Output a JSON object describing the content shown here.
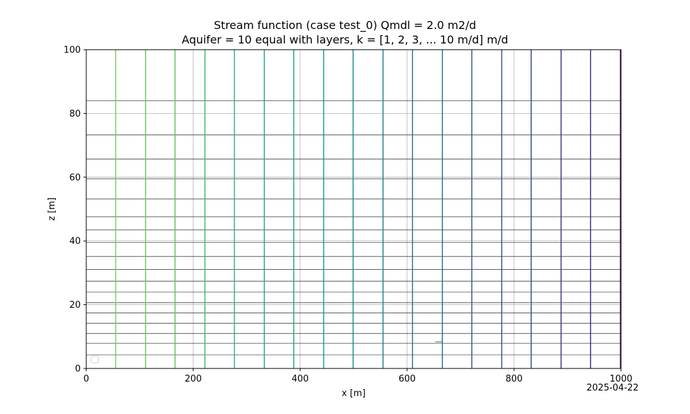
{
  "figure": {
    "title_line1": "Stream function (case test_0) Qmdl = 2.0 m2/d",
    "title_line2": "Aquifer = 10 equal with layers, k = [1, 2, 3, ... 10 m/d] m/d",
    "date_stamp": "2025-04-22"
  },
  "chart_data": {
    "type": "line",
    "title": "Stream function (case test_0) Qmdl = 2.0 m2/d\nAquifer = 10 equal with layers, k = [1, 2, 3, ... 10 m/d] m/d",
    "xlabel": "x [m]",
    "ylabel": "z [m]",
    "xlim": [
      0,
      1000
    ],
    "ylim": [
      0,
      100
    ],
    "xticks": [
      0,
      200,
      400,
      600,
      800,
      1000
    ],
    "yticks": [
      0,
      20,
      40,
      60,
      80,
      100
    ],
    "grid": true,
    "legend": "lower-left (empty)",
    "vertical_lines_x": [
      55,
      111,
      166,
      222,
      277,
      333,
      388,
      444,
      499,
      555,
      610,
      666,
      721,
      777,
      832,
      888,
      943,
      999
    ],
    "vertical_colors": [
      "#7ad151",
      "#6ccd5a",
      "#5ec962",
      "#40bd72",
      "#35b779",
      "#27ad81",
      "#22a884",
      "#1f9e89",
      "#21918c",
      "#23888e",
      "#2a788e",
      "#2c728e",
      "#33638d",
      "#38588c",
      "#3e4989",
      "#433e85",
      "#472d7b",
      "#440154"
    ],
    "horizontal_lines_z": [
      84,
      73.3,
      65.7,
      59.5,
      53.2,
      47.6,
      43.5,
      39.5,
      35.1,
      31.1,
      27.4,
      24,
      20.6,
      17.4,
      14.2,
      11,
      7.9,
      4.3
    ]
  }
}
